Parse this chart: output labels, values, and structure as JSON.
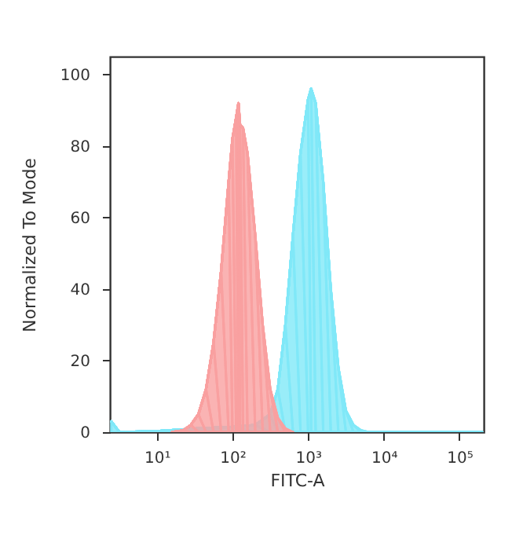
{
  "chart_data": {
    "type": "area",
    "xlabel": "FITC-A",
    "ylabel": "Normalized To Mode",
    "log": "x",
    "grid": false,
    "xlim": [
      2.4,
      210000
    ],
    "xticks": [
      {
        "value": 10,
        "label": "10¹"
      },
      {
        "value": 100,
        "label": "10²"
      },
      {
        "value": 1000,
        "label": "10³"
      },
      {
        "value": 10000,
        "label": "10⁴"
      },
      {
        "value": 100000,
        "label": "10⁵"
      }
    ],
    "ylim": [
      0,
      105
    ],
    "yticks": [
      0,
      20,
      40,
      60,
      80,
      100
    ],
    "series": [
      {
        "color": "#80e8f8",
        "x": [
          2.5,
          3.2,
          10,
          32,
          100,
          200,
          316,
          398,
          501,
          631,
          794,
          1000,
          1096,
          1259,
          1585,
          1995,
          2512,
          3162,
          3981,
          5012,
          6310,
          200000
        ],
        "values": [
          3,
          0,
          0.3,
          1,
          1.5,
          2,
          5,
          12,
          30,
          55,
          78,
          93,
          96,
          92,
          70,
          40,
          18,
          6,
          2,
          0.5,
          0,
          0
        ]
      },
      {
        "color": "#f9a0a0",
        "x": [
          15.8,
          22.4,
          28.2,
          35.5,
          44.7,
          56.2,
          70.8,
          89.1,
          100,
          112,
          120,
          126,
          138,
          158,
          200,
          251,
          316,
          398,
          501,
          631
        ],
        "values": [
          0,
          0.5,
          2,
          5,
          12,
          25,
          45,
          70,
          82,
          88,
          92,
          86,
          85,
          78,
          55,
          30,
          12,
          4,
          1,
          0
        ]
      }
    ]
  }
}
